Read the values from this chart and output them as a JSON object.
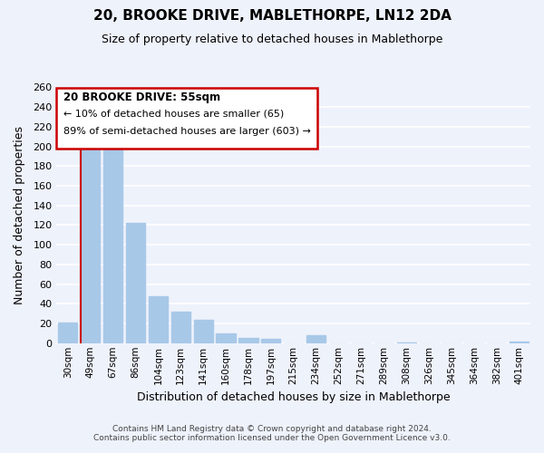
{
  "title": "20, BROOKE DRIVE, MABLETHORPE, LN12 2DA",
  "subtitle": "Size of property relative to detached houses in Mablethorpe",
  "xlabel": "Distribution of detached houses by size in Mablethorpe",
  "ylabel": "Number of detached properties",
  "bar_labels": [
    "30sqm",
    "49sqm",
    "67sqm",
    "86sqm",
    "104sqm",
    "123sqm",
    "141sqm",
    "160sqm",
    "178sqm",
    "197sqm",
    "215sqm",
    "234sqm",
    "252sqm",
    "271sqm",
    "289sqm",
    "308sqm",
    "326sqm",
    "345sqm",
    "364sqm",
    "382sqm",
    "401sqm"
  ],
  "bar_values": [
    21,
    200,
    212,
    122,
    48,
    32,
    24,
    10,
    5,
    4,
    0,
    8,
    0,
    0,
    0,
    1,
    0,
    0,
    0,
    0,
    2
  ],
  "bar_color": "#a8c8e8",
  "marker_bar_index": 1,
  "marker_color": "#cc0000",
  "ylim": [
    0,
    260
  ],
  "yticks": [
    0,
    20,
    40,
    60,
    80,
    100,
    120,
    140,
    160,
    180,
    200,
    220,
    240,
    260
  ],
  "annotation_title": "20 BROOKE DRIVE: 55sqm",
  "annotation_line1": "← 10% of detached houses are smaller (65)",
  "annotation_line2": "89% of semi-detached houses are larger (603) →",
  "footer_line1": "Contains HM Land Registry data © Crown copyright and database right 2024.",
  "footer_line2": "Contains public sector information licensed under the Open Government Licence v3.0.",
  "bg_color": "#eef2fb",
  "plot_bg_color": "#eef2fb",
  "grid_color": "#ffffff",
  "annotation_box_color": "#ffffff",
  "annotation_border_color": "#cc0000"
}
